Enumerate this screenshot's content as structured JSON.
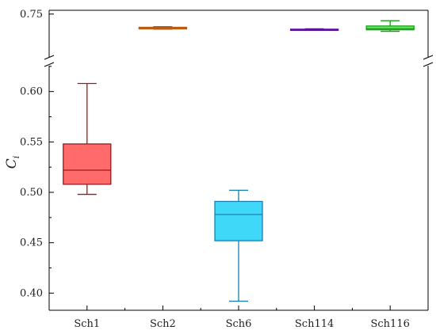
{
  "chart_data": {
    "type": "box",
    "ylabel": "C",
    "ylabel_subscript": "i",
    "categories": [
      "Sch1",
      "Sch2",
      "Sch6",
      "Sch114",
      "Sch116"
    ],
    "y_axis_segments": [
      {
        "ylim": [
          0.714,
          0.753
        ],
        "ticks": [
          0.75
        ]
      },
      {
        "ylim": [
          0.383,
          0.628
        ],
        "ticks": [
          0.4,
          0.45,
          0.5,
          0.55,
          0.6
        ]
      }
    ],
    "axis_break": true,
    "series": [
      {
        "category": "Sch1",
        "color": "#FF6B6B",
        "edge_color": "#9B1B1B",
        "min": 0.498,
        "q1": 0.508,
        "median": 0.522,
        "q3": 0.548,
        "max": 0.608,
        "segment": 1
      },
      {
        "category": "Sch2",
        "color": "#F08A2A",
        "edge_color": "#B85A10",
        "min": 0.738,
        "q1": 0.7382,
        "median": 0.739,
        "q3": 0.7395,
        "max": 0.74,
        "segment": 0
      },
      {
        "category": "Sch6",
        "color": "#40D8F8",
        "edge_color": "#1A7FB0",
        "min": 0.392,
        "q1": 0.452,
        "median": 0.478,
        "q3": 0.491,
        "max": 0.502,
        "segment": 1
      },
      {
        "category": "Sch114",
        "color": "#A070E0",
        "edge_color": "#5A0F9A",
        "min": 0.7372,
        "q1": 0.7375,
        "median": 0.7378,
        "q3": 0.738,
        "max": 0.7383,
        "segment": 0
      },
      {
        "category": "Sch116",
        "color": "#70EE70",
        "edge_color": "#10A010",
        "min": 0.7363,
        "q1": 0.7375,
        "median": 0.7385,
        "q3": 0.7405,
        "max": 0.7447,
        "segment": 0
      }
    ],
    "grid": false,
    "legend": false
  }
}
